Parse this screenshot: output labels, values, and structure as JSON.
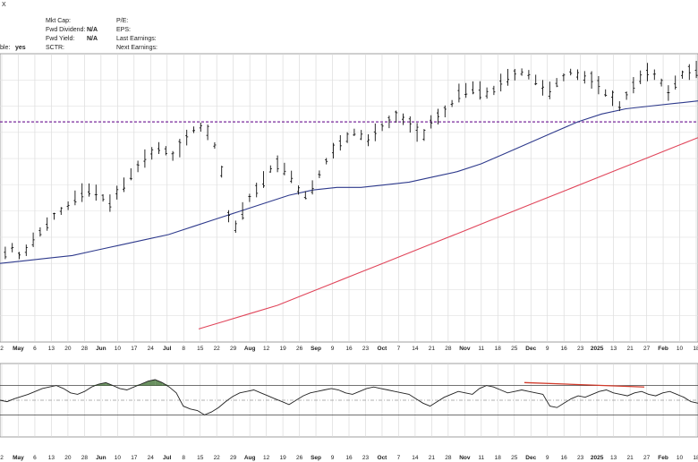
{
  "header": {
    "corner_text": "X",
    "left_partial_label": "ble:",
    "left_partial_value": "yes",
    "fields_col1": [
      {
        "label": "Mkt Cap:",
        "value": ""
      },
      {
        "label": "Fwd Dividend:",
        "value": "N/A"
      },
      {
        "label": "Fwd Yield:",
        "value": "N/A"
      },
      {
        "label": "SCTR:",
        "value": ""
      }
    ],
    "fields_col2": [
      {
        "label": "P/E:"
      },
      {
        "label": "EPS:"
      },
      {
        "label": "Last Earnings:"
      },
      {
        "label": "Next Earnings:"
      }
    ]
  },
  "chart_data": [
    {
      "type": "line",
      "panel": "price",
      "description_series": [
        {
          "name": "",
          "kind": "ohlc-bars",
          "color": "#111111",
          "values": [
            34,
            36,
            33,
            35,
            39,
            42,
            45,
            48,
            50,
            52,
            55,
            57,
            58,
            57,
            55,
            53,
            57,
            60,
            64,
            67,
            70,
            72,
            74,
            73,
            71,
            74,
            78,
            81,
            82,
            80,
            75,
            65,
            48,
            44,
            50,
            55,
            58,
            62,
            66,
            68,
            66,
            63,
            58,
            56,
            59,
            64,
            69,
            73,
            76,
            78,
            80,
            79,
            77,
            80,
            82,
            84,
            86,
            85,
            83,
            80,
            79,
            84,
            86,
            88,
            91,
            95,
            96,
            97,
            96,
            95,
            96,
            99,
            101,
            102,
            103,
            102,
            100,
            97,
            96,
            99,
            101,
            103,
            102,
            101,
            100,
            98,
            95,
            93,
            90,
            94,
            98,
            101,
            103,
            102,
            99,
            95,
            99,
            102,
            103,
            104
          ]
        },
        {
          "name": "",
          "kind": "moving-average",
          "color": "#2e3a8c",
          "values": [
            30,
            31,
            32,
            33,
            35,
            37,
            39,
            41,
            44,
            47,
            50,
            53,
            56,
            58,
            59,
            59,
            60,
            61,
            63,
            65,
            68,
            72,
            76,
            80,
            84,
            87,
            89,
            90,
            91,
            92
          ]
        },
        {
          "name": "",
          "kind": "moving-average",
          "color": "#e0455a",
          "values": [
            5,
            8,
            11,
            14,
            18,
            22,
            26,
            30,
            34,
            38,
            42,
            46,
            50,
            54,
            58,
            62,
            66,
            70,
            74,
            78
          ]
        }
      ],
      "horizontal_line": {
        "value": 84,
        "color": "#7a2a9c",
        "style": "dashed"
      },
      "x_tick_labels": [
        "2",
        "May",
        "6",
        "13",
        "20",
        "28",
        "Jun",
        "10",
        "17",
        "24",
        "Jul",
        "8",
        "15",
        "22",
        "29",
        "Aug",
        "12",
        "19",
        "26",
        "Sep",
        "9",
        "16",
        "23",
        "Oct",
        "7",
        "14",
        "21",
        "28",
        "Nov",
        "11",
        "18",
        "25",
        "Dec",
        "9",
        "16",
        "23",
        "2025",
        "13",
        "21",
        "27",
        "Feb",
        "10",
        "18"
      ],
      "grid": true
    },
    {
      "type": "line",
      "panel": "indicator",
      "series": [
        {
          "name": "",
          "color": "#222222",
          "values": [
            50,
            48,
            52,
            55,
            58,
            62,
            66,
            68,
            70,
            66,
            60,
            58,
            62,
            68,
            72,
            74,
            70,
            66,
            64,
            68,
            72,
            76,
            78,
            74,
            68,
            60,
            42,
            38,
            36,
            30,
            34,
            40,
            48,
            55,
            60,
            62,
            64,
            60,
            56,
            52,
            48,
            44,
            50,
            56,
            60,
            62,
            64,
            66,
            64,
            60,
            58,
            62,
            66,
            68,
            66,
            64,
            62,
            60,
            58,
            52,
            46,
            42,
            48,
            54,
            58,
            62,
            60,
            58,
            66,
            70,
            68,
            64,
            60,
            62,
            64,
            62,
            60,
            58,
            42,
            40,
            46,
            52,
            56,
            54,
            58,
            62,
            64,
            60,
            58,
            56,
            60,
            62,
            58,
            56,
            60,
            62,
            58,
            54,
            48,
            46
          ]
        }
      ],
      "overbought_level": 70,
      "oversold_level": 30,
      "mid_level": 50,
      "overbought_fill_color": "#4f7c43",
      "divergence_line_color": "#d23a2a",
      "x_tick_labels": [
        "2",
        "May",
        "6",
        "13",
        "20",
        "28",
        "Jun",
        "10",
        "17",
        "24",
        "Jul",
        "8",
        "15",
        "22",
        "29",
        "Aug",
        "12",
        "19",
        "26",
        "Sep",
        "9",
        "16",
        "23",
        "Oct",
        "7",
        "14",
        "21",
        "28",
        "Nov",
        "11",
        "18",
        "25",
        "Dec",
        "9",
        "16",
        "23",
        "2025",
        "13",
        "21",
        "27",
        "Feb",
        "10",
        "18"
      ],
      "grid": true
    }
  ]
}
